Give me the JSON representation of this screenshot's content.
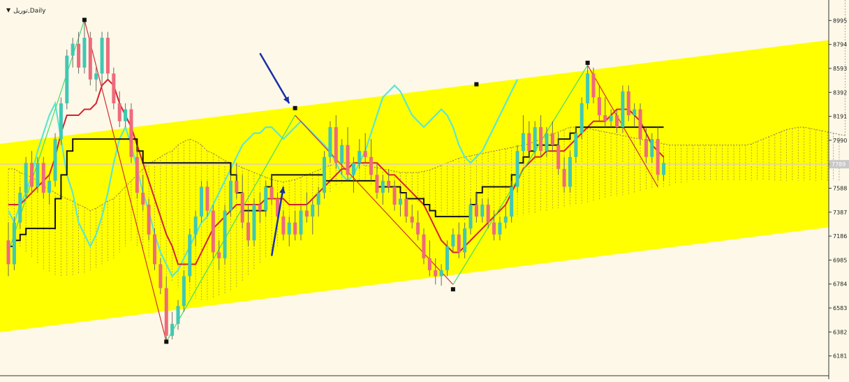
{
  "header": {
    "title": "توریل,Daily",
    "arrow_glyph": "▼"
  },
  "colors": {
    "background": "#fdf8e8",
    "channel": "#ffff00",
    "bull_candle": "#40c8b4",
    "bear_candle": "#ee6b7b",
    "tenkan": "#d4222e",
    "kijun": "#111111",
    "chikou": "#5ee6cf",
    "zigzag_up": "#44dd66",
    "zigzag_down": "#d03030",
    "cloud": "#8a7a5a",
    "annotation_arrow": "#1a2ea8",
    "current_price_line": "#e8d890"
  },
  "chart_data": {
    "type": "candlestick",
    "timeframe": "Daily",
    "y_ticks": [
      8995,
      8794,
      8593,
      8392,
      8191,
      7990,
      7789,
      7588,
      7387,
      7186,
      6985,
      6784,
      6583,
      6382,
      6181
    ],
    "current_price": "7789",
    "ylim": [
      6050,
      9120
    ],
    "candles": [
      {
        "o": 7150,
        "h": 7300,
        "l": 6850,
        "c": 6950
      },
      {
        "o": 6950,
        "h": 7350,
        "l": 6900,
        "c": 7300
      },
      {
        "o": 7300,
        "h": 7600,
        "l": 7250,
        "c": 7550
      },
      {
        "o": 7550,
        "h": 7850,
        "l": 7500,
        "c": 7800
      },
      {
        "o": 7800,
        "h": 7900,
        "l": 7550,
        "c": 7600
      },
      {
        "o": 7600,
        "h": 7850,
        "l": 7550,
        "c": 7800
      },
      {
        "o": 7800,
        "h": 7850,
        "l": 7500,
        "c": 7550
      },
      {
        "o": 7550,
        "h": 7700,
        "l": 7450,
        "c": 7650
      },
      {
        "o": 7650,
        "h": 8050,
        "l": 7600,
        "c": 8000
      },
      {
        "o": 8000,
        "h": 8350,
        "l": 7950,
        "c": 8300
      },
      {
        "o": 8300,
        "h": 8750,
        "l": 8250,
        "c": 8700
      },
      {
        "o": 8700,
        "h": 8850,
        "l": 8600,
        "c": 8800
      },
      {
        "o": 8800,
        "h": 8900,
        "l": 8550,
        "c": 8600
      },
      {
        "o": 8600,
        "h": 9000,
        "l": 8550,
        "c": 8850
      },
      {
        "o": 8850,
        "h": 8900,
        "l": 8450,
        "c": 8500
      },
      {
        "o": 8500,
        "h": 8600,
        "l": 8400,
        "c": 8550
      },
      {
        "o": 8550,
        "h": 8900,
        "l": 8450,
        "c": 8850
      },
      {
        "o": 8850,
        "h": 8900,
        "l": 8500,
        "c": 8550
      },
      {
        "o": 8550,
        "h": 8600,
        "l": 8250,
        "c": 8300
      },
      {
        "o": 8300,
        "h": 8400,
        "l": 8100,
        "c": 8150
      },
      {
        "o": 8150,
        "h": 8300,
        "l": 8100,
        "c": 8250
      },
      {
        "o": 8250,
        "h": 8300,
        "l": 7800,
        "c": 7850
      },
      {
        "o": 7850,
        "h": 7950,
        "l": 7500,
        "c": 7550
      },
      {
        "o": 7550,
        "h": 7700,
        "l": 7400,
        "c": 7450
      },
      {
        "o": 7450,
        "h": 7500,
        "l": 7150,
        "c": 7200
      },
      {
        "o": 7200,
        "h": 7250,
        "l": 6900,
        "c": 6950
      },
      {
        "o": 6950,
        "h": 7000,
        "l": 6700,
        "c": 6750
      },
      {
        "o": 6750,
        "h": 6850,
        "l": 6300,
        "c": 6350
      },
      {
        "o": 6350,
        "h": 6550,
        "l": 6320,
        "c": 6450
      },
      {
        "o": 6450,
        "h": 6650,
        "l": 6400,
        "c": 6600
      },
      {
        "o": 6600,
        "h": 6900,
        "l": 6550,
        "c": 6850
      },
      {
        "o": 6850,
        "h": 7250,
        "l": 6800,
        "c": 7200
      },
      {
        "o": 7200,
        "h": 7400,
        "l": 7100,
        "c": 7350
      },
      {
        "o": 7350,
        "h": 7650,
        "l": 7300,
        "c": 7600
      },
      {
        "o": 7600,
        "h": 7650,
        "l": 7350,
        "c": 7400
      },
      {
        "o": 7400,
        "h": 7450,
        "l": 7000,
        "c": 7050
      },
      {
        "o": 7050,
        "h": 7150,
        "l": 6900,
        "c": 7000
      },
      {
        "o": 7000,
        "h": 7450,
        "l": 6950,
        "c": 7400
      },
      {
        "o": 7400,
        "h": 7700,
        "l": 7350,
        "c": 7650
      },
      {
        "o": 7650,
        "h": 7800,
        "l": 7500,
        "c": 7550
      },
      {
        "o": 7550,
        "h": 7700,
        "l": 7250,
        "c": 7300
      },
      {
        "o": 7300,
        "h": 7450,
        "l": 7100,
        "c": 7150
      },
      {
        "o": 7150,
        "h": 7500,
        "l": 7100,
        "c": 7450
      },
      {
        "o": 7450,
        "h": 7550,
        "l": 7300,
        "c": 7400
      },
      {
        "o": 7400,
        "h": 7650,
        "l": 7350,
        "c": 7600
      },
      {
        "o": 7600,
        "h": 7700,
        "l": 7450,
        "c": 7500
      },
      {
        "o": 7500,
        "h": 7550,
        "l": 7300,
        "c": 7350
      },
      {
        "o": 7350,
        "h": 7400,
        "l": 7150,
        "c": 7200
      },
      {
        "o": 7200,
        "h": 7350,
        "l": 7100,
        "c": 7300
      },
      {
        "o": 7300,
        "h": 7400,
        "l": 7150,
        "c": 7200
      },
      {
        "o": 7200,
        "h": 7450,
        "l": 7150,
        "c": 7400
      },
      {
        "o": 7400,
        "h": 7550,
        "l": 7300,
        "c": 7350
      },
      {
        "o": 7350,
        "h": 7500,
        "l": 7200,
        "c": 7450
      },
      {
        "o": 7450,
        "h": 7600,
        "l": 7350,
        "c": 7550
      },
      {
        "o": 7550,
        "h": 7900,
        "l": 7500,
        "c": 7850
      },
      {
        "o": 7850,
        "h": 8150,
        "l": 7800,
        "c": 8100
      },
      {
        "o": 8100,
        "h": 8200,
        "l": 7750,
        "c": 7800
      },
      {
        "o": 7800,
        "h": 8000,
        "l": 7700,
        "c": 7950
      },
      {
        "o": 7950,
        "h": 8100,
        "l": 7650,
        "c": 7700
      },
      {
        "o": 7700,
        "h": 7850,
        "l": 7550,
        "c": 7800
      },
      {
        "o": 7800,
        "h": 8000,
        "l": 7750,
        "c": 7900
      },
      {
        "o": 7900,
        "h": 8050,
        "l": 7800,
        "c": 7850
      },
      {
        "o": 7850,
        "h": 8000,
        "l": 7650,
        "c": 7700
      },
      {
        "o": 7700,
        "h": 7800,
        "l": 7500,
        "c": 7550
      },
      {
        "o": 7550,
        "h": 7700,
        "l": 7450,
        "c": 7650
      },
      {
        "o": 7650,
        "h": 7750,
        "l": 7550,
        "c": 7600
      },
      {
        "o": 7600,
        "h": 7650,
        "l": 7400,
        "c": 7450
      },
      {
        "o": 7450,
        "h": 7550,
        "l": 7350,
        "c": 7500
      },
      {
        "o": 7500,
        "h": 7550,
        "l": 7300,
        "c": 7350
      },
      {
        "o": 7350,
        "h": 7450,
        "l": 7250,
        "c": 7300
      },
      {
        "o": 7300,
        "h": 7400,
        "l": 7150,
        "c": 7200
      },
      {
        "o": 7200,
        "h": 7250,
        "l": 6950,
        "c": 7000
      },
      {
        "o": 7000,
        "h": 7150,
        "l": 6850,
        "c": 6900
      },
      {
        "o": 6900,
        "h": 7000,
        "l": 6780,
        "c": 6850
      },
      {
        "o": 6850,
        "h": 6950,
        "l": 6770,
        "c": 6900
      },
      {
        "o": 6900,
        "h": 7150,
        "l": 6850,
        "c": 7100
      },
      {
        "o": 7100,
        "h": 7250,
        "l": 7050,
        "c": 7200
      },
      {
        "o": 7200,
        "h": 7300,
        "l": 7000,
        "c": 7050
      },
      {
        "o": 7050,
        "h": 7300,
        "l": 7000,
        "c": 7250
      },
      {
        "o": 7250,
        "h": 7500,
        "l": 7200,
        "c": 7450
      },
      {
        "o": 7450,
        "h": 7550,
        "l": 7300,
        "c": 7350
      },
      {
        "o": 7350,
        "h": 7500,
        "l": 7300,
        "c": 7450
      },
      {
        "o": 7450,
        "h": 7500,
        "l": 7250,
        "c": 7300
      },
      {
        "o": 7300,
        "h": 7400,
        "l": 7150,
        "c": 7200
      },
      {
        "o": 7200,
        "h": 7350,
        "l": 7150,
        "c": 7300
      },
      {
        "o": 7300,
        "h": 7450,
        "l": 7250,
        "c": 7350
      },
      {
        "o": 7350,
        "h": 7650,
        "l": 7300,
        "c": 7600
      },
      {
        "o": 7600,
        "h": 7950,
        "l": 7550,
        "c": 7900
      },
      {
        "o": 7900,
        "h": 8200,
        "l": 7850,
        "c": 8050
      },
      {
        "o": 8050,
        "h": 8150,
        "l": 7850,
        "c": 7900
      },
      {
        "o": 7900,
        "h": 8150,
        "l": 7850,
        "c": 8100
      },
      {
        "o": 8100,
        "h": 8200,
        "l": 7850,
        "c": 7900
      },
      {
        "o": 7900,
        "h": 8100,
        "l": 7850,
        "c": 8050
      },
      {
        "o": 8050,
        "h": 8150,
        "l": 7900,
        "c": 7950
      },
      {
        "o": 7950,
        "h": 8050,
        "l": 7700,
        "c": 7750
      },
      {
        "o": 7750,
        "h": 7850,
        "l": 7550,
        "c": 7600
      },
      {
        "o": 7600,
        "h": 7900,
        "l": 7550,
        "c": 7850
      },
      {
        "o": 7850,
        "h": 8100,
        "l": 7800,
        "c": 8050
      },
      {
        "o": 8050,
        "h": 8350,
        "l": 8000,
        "c": 8300
      },
      {
        "o": 8300,
        "h": 8620,
        "l": 8250,
        "c": 8550
      },
      {
        "o": 8550,
        "h": 8600,
        "l": 8300,
        "c": 8350
      },
      {
        "o": 8350,
        "h": 8450,
        "l": 8150,
        "c": 8200
      },
      {
        "o": 8200,
        "h": 8350,
        "l": 8100,
        "c": 8150
      },
      {
        "o": 8150,
        "h": 8250,
        "l": 8100,
        "c": 8200
      },
      {
        "o": 8200,
        "h": 8250,
        "l": 8050,
        "c": 8100
      },
      {
        "o": 8100,
        "h": 8450,
        "l": 8050,
        "c": 8400
      },
      {
        "o": 8400,
        "h": 8450,
        "l": 8150,
        "c": 8200
      },
      {
        "o": 8200,
        "h": 8300,
        "l": 8100,
        "c": 8250
      },
      {
        "o": 8250,
        "h": 8300,
        "l": 7950,
        "c": 8000
      },
      {
        "o": 8000,
        "h": 8100,
        "l": 7800,
        "c": 7850
      },
      {
        "o": 7850,
        "h": 8050,
        "l": 7800,
        "c": 8000
      },
      {
        "o": 8000,
        "h": 8100,
        "l": 7650,
        "c": 7700
      },
      {
        "o": 7700,
        "h": 7850,
        "l": 7650,
        "c": 7800
      }
    ],
    "tenkan": [
      7450,
      7450,
      7450,
      7500,
      7550,
      7600,
      7650,
      7700,
      7850,
      8050,
      8200,
      8200,
      8200,
      8250,
      8250,
      8300,
      8450,
      8500,
      8450,
      8300,
      8200,
      8100,
      7950,
      7800,
      7650,
      7500,
      7350,
      7200,
      7100,
      6950,
      6950,
      6950,
      6950,
      7050,
      7150,
      7250,
      7300,
      7350,
      7400,
      7450,
      7450,
      7450,
      7450,
      7450,
      7500,
      7500,
      7500,
      7500,
      7450,
      7450,
      7450,
      7450,
      7500,
      7550,
      7600,
      7650,
      7700,
      7750,
      7750,
      7800,
      7800,
      7800,
      7800,
      7800,
      7750,
      7700,
      7700,
      7650,
      7600,
      7550,
      7500,
      7450,
      7350,
      7250,
      7150,
      7100,
      7050,
      7050,
      7100,
      7150,
      7200,
      7250,
      7300,
      7350,
      7400,
      7450,
      7550,
      7650,
      7750,
      7800,
      7850,
      7850,
      7900,
      7900,
      7900,
      7900,
      7950,
      8000,
      8050,
      8100,
      8150,
      8150,
      8150,
      8200,
      8250,
      8250,
      8250,
      8200,
      8150,
      8050,
      7950,
      7900,
      7850
    ],
    "kijun": [
      7100,
      7150,
      7200,
      7250,
      7250,
      7250,
      7250,
      7250,
      7500,
      7700,
      7900,
      8000,
      8000,
      8000,
      8000,
      8000,
      8000,
      8000,
      8000,
      8000,
      8000,
      8000,
      7900,
      7800,
      7800,
      7800,
      7800,
      7800,
      7800,
      7800,
      7800,
      7800,
      7800,
      7800,
      7800,
      7800,
      7800,
      7800,
      7700,
      7550,
      7400,
      7400,
      7400,
      7400,
      7600,
      7700,
      7700,
      7700,
      7700,
      7700,
      7700,
      7700,
      7700,
      7700,
      7650,
      7650,
      7650,
      7650,
      7650,
      7650,
      7650,
      7650,
      7650,
      7600,
      7600,
      7600,
      7600,
      7550,
      7500,
      7500,
      7500,
      7450,
      7400,
      7350,
      7350,
      7350,
      7350,
      7350,
      7350,
      7450,
      7550,
      7600,
      7600,
      7600,
      7600,
      7600,
      7700,
      7800,
      7850,
      7900,
      7950,
      7950,
      7950,
      7950,
      8000,
      8000,
      8050,
      8100,
      8100,
      8100,
      8100,
      8100,
      8100,
      8100,
      8100,
      8100,
      8100,
      8100,
      8100,
      8100,
      8100,
      8100
    ],
    "chikou": [
      7400,
      7300,
      7450,
      7550,
      7700,
      7900,
      8050,
      8200,
      8300,
      8000,
      7700,
      7550,
      7300,
      7200,
      7100,
      7200,
      7350,
      7550,
      7800,
      8000,
      8100,
      7950,
      7750,
      7550,
      7400,
      7200,
      7050,
      6950,
      6850,
      6900,
      7000,
      7100,
      7200,
      7300,
      7350,
      7450,
      7550,
      7650,
      7750,
      7850,
      7950,
      8000,
      8050,
      8050,
      8100,
      8100,
      8050,
      8000,
      8050,
      8100,
      8150,
      8100,
      8050,
      8000,
      7950,
      7900,
      7800,
      7700,
      7650,
      7700,
      7800,
      7900,
      8050,
      8200,
      8350,
      8400,
      8450,
      8400,
      8300,
      8200,
      8150,
      8100,
      8150,
      8200,
      8250,
      8200,
      8100,
      7950,
      7850,
      7800,
      7850,
      7900,
      8000,
      8100,
      8200,
      8300,
      8400,
      8500
    ],
    "cloud_top": [
      7750,
      7750,
      7720,
      7700,
      7680,
      7650,
      7600,
      7580,
      7550,
      7520,
      7500,
      7480,
      7450,
      7430,
      7400,
      7420,
      7450,
      7480,
      7500,
      7550,
      7600,
      7650,
      7700,
      7750,
      7800,
      7820,
      7850,
      7880,
      7900,
      7950,
      7980,
      8000,
      7980,
      7950,
      7900,
      7880,
      7850,
      7820,
      7800,
      7780,
      7760,
      7740,
      7720,
      7700,
      7680,
      7660,
      7650,
      7640,
      7650,
      7660,
      7680,
      7700,
      7720,
      7740,
      7760,
      7780,
      7790,
      7800,
      7800,
      7800,
      7790,
      7780,
      7770,
      7760,
      7750,
      7740,
      7730,
      7720,
      7720,
      7720,
      7720,
      7730,
      7740,
      7760,
      7780,
      7800,
      7820,
      7840,
      7850,
      7860,
      7870,
      7880,
      7890,
      7900,
      7910,
      7920,
      7930,
      7940,
      7950,
      7960,
      7980,
      8000,
      8020,
      8040,
      8060,
      8080,
      8100,
      8100,
      8100,
      8090,
      8080,
      8070,
      8060,
      8050,
      8040,
      8030,
      8020,
      8010,
      8000,
      7990,
      7980,
      7970,
      7960,
      7950,
      7950,
      7950,
      7950,
      7950,
      7950,
      7950,
      7950,
      7950,
      7950,
      7950,
      7950,
      7950,
      7950,
      7960,
      7980,
      8000,
      8020,
      8040,
      8060,
      8080,
      8090,
      8100,
      8100,
      8090,
      8080,
      8070,
      8060,
      8050,
      8040,
      8030
    ],
    "cloud_bottom": [
      7200,
      7150,
      7100,
      7050,
      7000,
      6950,
      6900,
      6880,
      6860,
      6850,
      6850,
      6860,
      6870,
      6880,
      6900,
      6920,
      6950,
      6980,
      7000,
      7050,
      7100,
      7150,
      7100,
      7050,
      7000,
      6950,
      6900,
      6850,
      6800,
      6750,
      6700,
      6680,
      6660,
      6650,
      6650,
      6660,
      6680,
      6700,
      6720,
      6750,
      6800,
      6850,
      6900,
      6950,
      7000,
      7050,
      7100,
      7150,
      7200,
      7250,
      7300,
      7350,
      7400,
      7450,
      7500,
      7550,
      7600,
      7620,
      7640,
      7650,
      7650,
      7640,
      7620,
      7600,
      7580,
      7560,
      7540,
      7520,
      7500,
      7480,
      7460,
      7440,
      7420,
      7400,
      7380,
      7360,
      7340,
      7330,
      7320,
      7310,
      7300,
      7300,
      7300,
      7310,
      7320,
      7330,
      7340,
      7350,
      7360,
      7370,
      7380,
      7390,
      7400,
      7410,
      7420,
      7430,
      7440,
      7450,
      7460,
      7470,
      7480,
      7490,
      7500,
      7510,
      7520,
      7530,
      7540,
      7550,
      7560,
      7570,
      7580,
      7590,
      7600,
      7610,
      7620,
      7630,
      7640,
      7650,
      7650,
      7650,
      7650,
      7650,
      7650,
      7650,
      7650,
      7650,
      7650,
      7650,
      7650,
      7650,
      7650,
      7650,
      7650,
      7650,
      7650,
      7650,
      7650,
      7650,
      7650,
      7650,
      7650,
      7650,
      7650
    ],
    "zigzag": [
      {
        "i": 0,
        "v": 7050
      },
      {
        "i": 13,
        "v": 9000
      },
      {
        "i": 27,
        "v": 6300
      },
      {
        "i": 49,
        "v": 8200
      },
      {
        "i": 76,
        "v": 6780
      },
      {
        "i": 99,
        "v": 8620
      },
      {
        "i": 111,
        "v": 7600
      }
    ],
    "swing_markers": [
      {
        "i": 13,
        "v": 9000
      },
      {
        "i": 27,
        "v": 6300
      },
      {
        "i": 49,
        "v": 8260
      },
      {
        "i": 76,
        "v": 6740
      },
      {
        "i": 80,
        "v": 8460
      },
      {
        "i": 99,
        "v": 8640
      }
    ],
    "channel": {
      "upper": [
        [
          0,
          7960
        ],
        [
          134,
          8830
        ]
      ],
      "lower": [
        [
          0,
          6380
        ],
        [
          134,
          7260
        ]
      ]
    },
    "annotations": [
      {
        "type": "arrow-down",
        "from": {
          "i": 43,
          "v": 8720
        },
        "to": {
          "i": 48,
          "v": 8300
        }
      },
      {
        "type": "arrow-up",
        "from": {
          "i": 45,
          "v": 7020
        },
        "to": {
          "i": 47,
          "v": 7600
        }
      }
    ]
  }
}
